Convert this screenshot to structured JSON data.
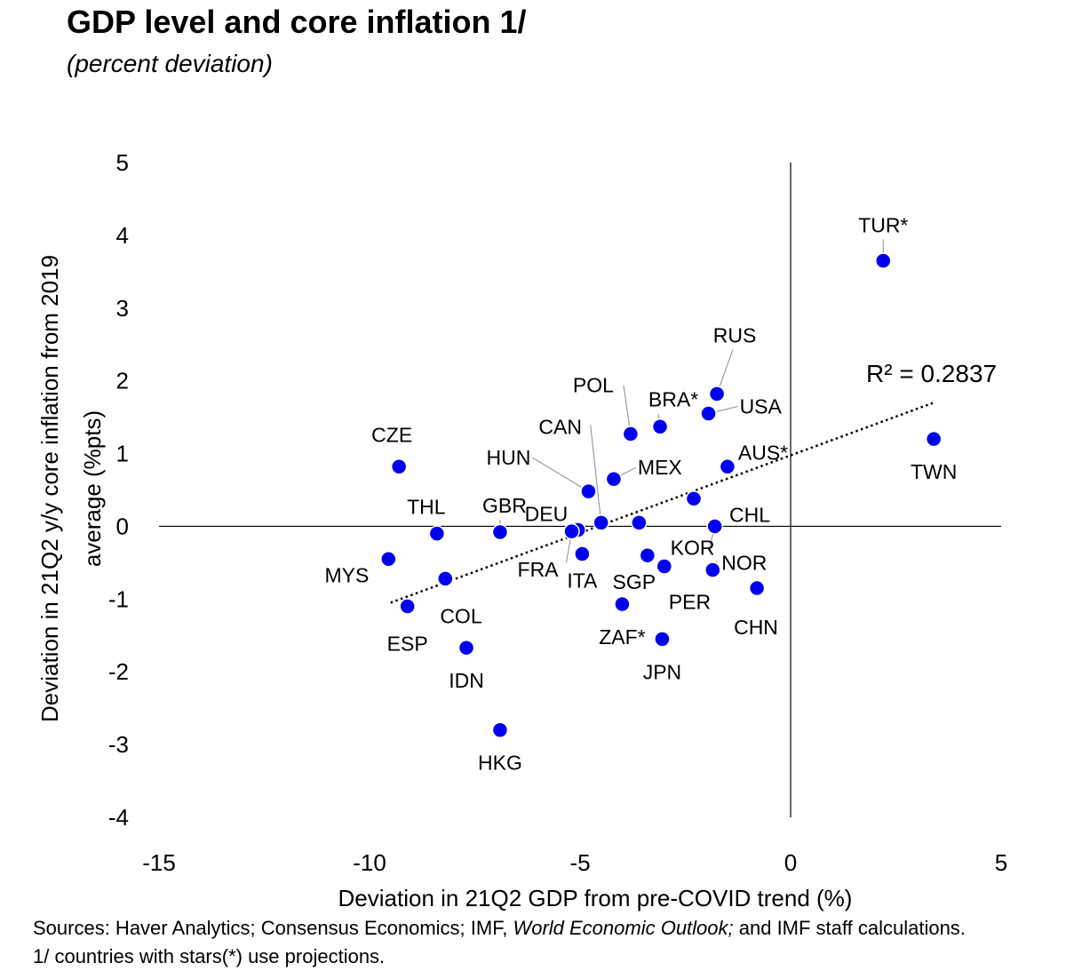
{
  "header": {
    "title": "GDP level and core inflation 1/",
    "subtitle": "(percent deviation)"
  },
  "footer": {
    "sources_prefix": "Sources: Haver Analytics; Consensus Economics; IMF, ",
    "sources_italic": "World Economic Outlook;",
    "sources_suffix": " and IMF staff calculations.",
    "footnote": "1/ countries with stars(*) use projections."
  },
  "chart_data": {
    "type": "scatter",
    "xlabel": "Deviation in 21Q2 GDP from pre-COVID trend (%)",
    "ylabel_line1": "Deviation in 21Q2 y/y core inflation from 2019",
    "ylabel_line2": "average (%pts)",
    "xlim": [
      -15,
      5
    ],
    "ylim": [
      -4,
      5
    ],
    "xticks": [
      "-15",
      "-10",
      "-5",
      "0",
      "5"
    ],
    "yticks": [
      "5",
      "4",
      "3",
      "2",
      "1",
      "0",
      "-1",
      "-2",
      "-3",
      "-4"
    ],
    "marker_color": "#0000ee",
    "trendline": {
      "style": "dotted",
      "r2_label": "R² = 0.2837",
      "x": [
        -9.5,
        3.4
      ],
      "y": [
        -1.05,
        1.7
      ]
    },
    "points": [
      {
        "label": "TUR*",
        "x": 2.2,
        "y": 3.65
      },
      {
        "label": "TWN",
        "x": 3.4,
        "y": 1.2
      },
      {
        "label": "RUS",
        "x": -1.75,
        "y": 1.82
      },
      {
        "label": "BRA*",
        "x": -3.1,
        "y": 1.37
      },
      {
        "label": "USA",
        "x": -1.95,
        "y": 1.55
      },
      {
        "label": "POL",
        "x": -3.8,
        "y": 1.27
      },
      {
        "label": "AUS*",
        "x": -1.5,
        "y": 0.82
      },
      {
        "label": "CZE",
        "x": -9.3,
        "y": 0.82
      },
      {
        "label": "MEX",
        "x": -4.2,
        "y": 0.65
      },
      {
        "label": "HUN",
        "x": -4.8,
        "y": 0.48
      },
      {
        "label": "CHL",
        "x": -2.3,
        "y": 0.38
      },
      {
        "label": "CAN",
        "x": -4.5,
        "y": 0.05
      },
      {
        "label": "DEU",
        "x": -5.05,
        "y": -0.05
      },
      {
        "label": "GBR",
        "x": -6.9,
        "y": -0.08
      },
      {
        "label": "THL",
        "x": -8.4,
        "y": -0.1
      },
      {
        "label": "FRA",
        "x": -5.2,
        "y": -0.07
      },
      {
        "label": "KOR",
        "x": -1.8,
        "y": 0.0
      },
      {
        "label": "",
        "x": -3.6,
        "y": 0.05
      },
      {
        "label": "ITA",
        "x": -4.95,
        "y": -0.38
      },
      {
        "label": "SGP",
        "x": -3.4,
        "y": -0.4
      },
      {
        "label": "PER",
        "x": -3.0,
        "y": -0.55
      },
      {
        "label": "NOR",
        "x": -1.85,
        "y": -0.6
      },
      {
        "label": "CHN",
        "x": -0.8,
        "y": -0.85
      },
      {
        "label": "MYS",
        "x": -9.55,
        "y": -0.45
      },
      {
        "label": "COL",
        "x": -8.2,
        "y": -0.72
      },
      {
        "label": "ESP",
        "x": -9.1,
        "y": -1.1
      },
      {
        "label": "ZAF*",
        "x": -4.0,
        "y": -1.07
      },
      {
        "label": "JPN",
        "x": -3.05,
        "y": -1.55
      },
      {
        "label": "IDN",
        "x": -7.7,
        "y": -1.67
      },
      {
        "label": "HKG",
        "x": -6.9,
        "y": -2.8
      }
    ]
  }
}
